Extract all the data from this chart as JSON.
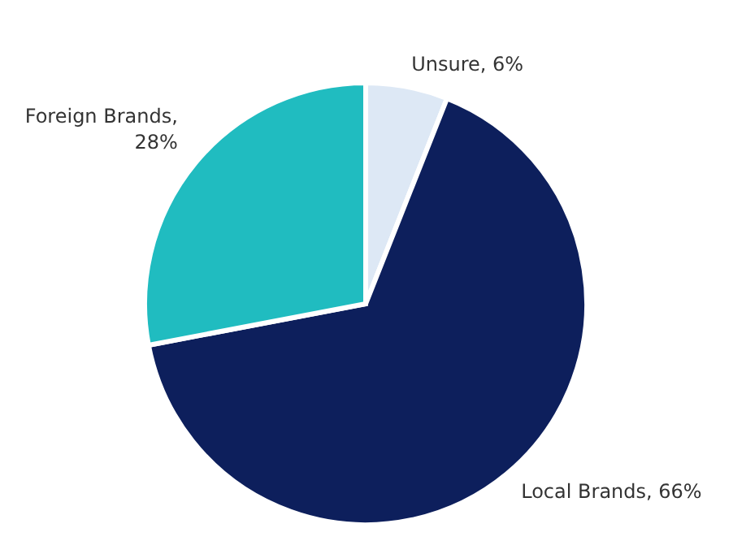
{
  "chart_data": {
    "type": "pie",
    "categories": [
      "Unsure",
      "Local Brands",
      "Foreign Brands"
    ],
    "values": [
      6,
      66,
      28
    ],
    "value_labels": [
      ", 6%",
      ", 66%",
      ", 28%"
    ],
    "colors": [
      "#dde8f5",
      "#0d1f5c",
      "#20bcc0"
    ]
  }
}
